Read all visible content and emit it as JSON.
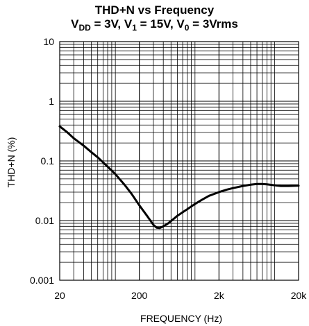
{
  "chart_data": {
    "type": "line",
    "title": "THD+N vs Frequency",
    "subtitle": {
      "parts": [
        {
          "text": "V",
          "sub": "DD"
        },
        {
          "text": " = 3V, V",
          "sub": "1"
        },
        {
          "text": " = 15V, V",
          "sub": "0"
        },
        {
          "text": " = 3Vrms",
          "sub": ""
        }
      ]
    },
    "xlabel": "FREQUENCY (Hz)",
    "ylabel": "THD+N (%)",
    "xscale": "log",
    "yscale": "log",
    "xlim": [
      20,
      20000
    ],
    "ylim": [
      0.001,
      10
    ],
    "grid": true,
    "x_ticks": [
      {
        "value": 20,
        "label": "20"
      },
      {
        "value": 200,
        "label": "200"
      },
      {
        "value": 2000,
        "label": "2k"
      },
      {
        "value": 20000,
        "label": "20k"
      }
    ],
    "y_ticks": [
      {
        "value": 10,
        "label": "10"
      },
      {
        "value": 1,
        "label": "1"
      },
      {
        "value": 0.1,
        "label": "0.1"
      },
      {
        "value": 0.01,
        "label": "0.01"
      },
      {
        "value": 0.001,
        "label": "0.001"
      }
    ],
    "series": [
      {
        "color": "#000000",
        "x": [
          20,
          25,
          30,
          40,
          50,
          60,
          80,
          100,
          130,
          160,
          200,
          250,
          300,
          330,
          360,
          400,
          450,
          500,
          600,
          700,
          800,
          1000,
          1200,
          1500,
          2000,
          2500,
          3000,
          4000,
          5000,
          6000,
          7000,
          8000,
          10000,
          12000,
          15000,
          20000
        ],
        "y": [
          0.38,
          0.3,
          0.24,
          0.18,
          0.14,
          0.115,
          0.08,
          0.06,
          0.04,
          0.028,
          0.018,
          0.012,
          0.0085,
          0.0076,
          0.0075,
          0.008,
          0.0088,
          0.0098,
          0.012,
          0.0138,
          0.0155,
          0.019,
          0.022,
          0.026,
          0.03,
          0.033,
          0.035,
          0.038,
          0.04,
          0.041,
          0.041,
          0.0405,
          0.039,
          0.038,
          0.038,
          0.0385
        ]
      }
    ]
  }
}
